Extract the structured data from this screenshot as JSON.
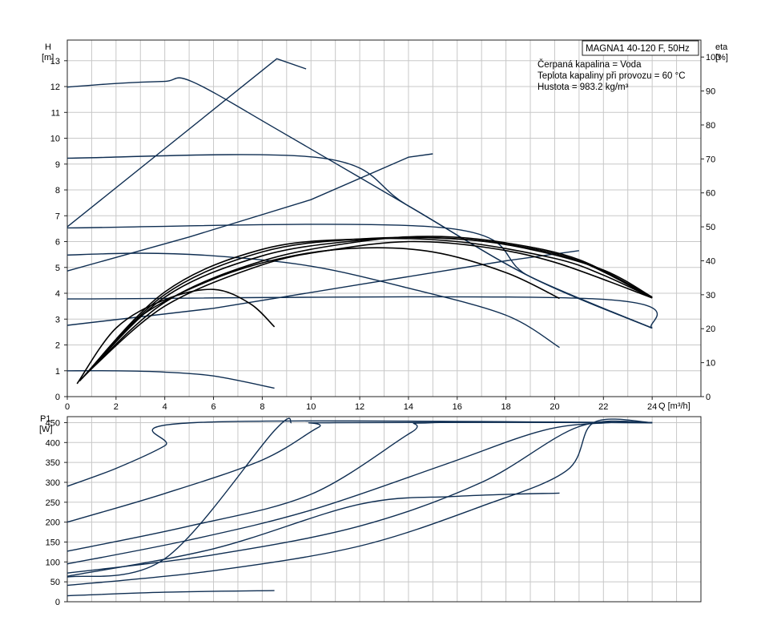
{
  "info": {
    "model": "MAGNA1 40-120 F, 50Hz",
    "lines": [
      "Čerpaná kapalina = Voda",
      "Teplota kapaliny při provozu = 60 °C",
      "Hustota = 983.2 kg/m³"
    ]
  },
  "colors": {
    "curve": "#0f2e52",
    "eff": "#000000",
    "grid": "#c8c8c8"
  },
  "chart_data": [
    {
      "type": "line",
      "name": "head-efficiency",
      "xlabel": "Q [m³/h]",
      "ylabel_top": "H",
      "ylabel_unit": "[m]",
      "y2label_top": "eta",
      "y2label_unit": "[%]",
      "xlim": [
        0,
        26
      ],
      "ylim": [
        0,
        13.8
      ],
      "y2lim": [
        0,
        105
      ],
      "xticks": [
        0,
        2,
        4,
        6,
        8,
        10,
        12,
        14,
        16,
        18,
        20,
        22,
        24
      ],
      "yticks": [
        0,
        1,
        2,
        3,
        4,
        5,
        6,
        7,
        8,
        9,
        10,
        11,
        12,
        13
      ],
      "y2ticks": [
        0,
        10,
        20,
        30,
        40,
        50,
        60,
        70,
        80,
        90,
        100
      ],
      "grid": true,
      "head_curves": [
        {
          "points": [
            [
              0,
              11.98
            ],
            [
              2,
              12.12
            ],
            [
              4,
              12.2
            ],
            [
              5.1,
              12.2
            ],
            [
              8.6,
              10.35
            ],
            [
              14,
              7.38
            ],
            [
              19,
              4.64
            ],
            [
              24,
              2.65
            ]
          ]
        },
        {
          "points": [
            [
              0,
              9.23
            ],
            [
              10.5,
              9.23
            ],
            [
              14,
              7.38
            ],
            [
              19,
              4.64
            ],
            [
              24,
              2.65
            ]
          ]
        },
        {
          "points": [
            [
              0,
              6.53
            ],
            [
              15.5,
              6.53
            ],
            [
              19,
              4.64
            ],
            [
              24,
              2.65
            ]
          ]
        },
        {
          "points": [
            [
              0,
              3.78
            ],
            [
              21.7,
              3.78
            ],
            [
              24,
              2.65
            ]
          ]
        },
        {
          "points": [
            [
              0,
              5.48
            ],
            [
              3,
              5.55
            ],
            [
              6,
              5.45
            ],
            [
              10,
              5.05
            ],
            [
              14,
              4.2
            ],
            [
              18,
              3.15
            ],
            [
              20.2,
              1.9
            ]
          ]
        },
        {
          "points": [
            [
              0,
              1.0
            ],
            [
              2,
              1.0
            ],
            [
              4,
              0.95
            ],
            [
              6,
              0.8
            ],
            [
              8.5,
              0.33
            ]
          ]
        }
      ],
      "eta_curves": [
        {
          "points": [
            [
              0,
              50
            ],
            [
              8.6,
              99.5
            ],
            [
              9.8,
              96.5
            ]
          ]
        },
        {
          "points": [
            [
              0,
              37
            ],
            [
              5,
              47
            ],
            [
              10,
              58
            ],
            [
              14,
              70.5
            ],
            [
              15,
              71.5
            ]
          ]
        },
        {
          "points": [
            [
              0,
              21
            ],
            [
              6,
              26
            ],
            [
              12,
              33
            ],
            [
              18,
              40
            ],
            [
              21,
              43
            ]
          ]
        }
      ],
      "efficiency_curves": [
        {
          "points": [
            [
              0.4,
              0.5
            ],
            [
              2,
              2.65
            ],
            [
              4,
              3.75
            ],
            [
              6,
              4.15
            ],
            [
              7.5,
              3.6
            ],
            [
              8.5,
              2.7
            ]
          ]
        },
        {
          "points": [
            [
              0.8,
              0.9
            ],
            [
              3,
              3.1
            ],
            [
              6,
              4.55
            ],
            [
              9,
              5.4
            ],
            [
              12,
              5.75
            ],
            [
              15,
              5.6
            ],
            [
              18,
              4.8
            ],
            [
              20.2,
              3.8
            ]
          ]
        },
        {
          "points": [
            [
              0.9,
              1.0
            ],
            [
              4,
              3.5
            ],
            [
              8,
              5.1
            ],
            [
              11,
              5.7
            ],
            [
              14,
              6.0
            ],
            [
              17,
              5.8
            ],
            [
              20,
              5.2
            ],
            [
              24,
              3.82
            ]
          ]
        },
        {
          "points": [
            [
              0.8,
              0.9
            ],
            [
              4,
              3.65
            ],
            [
              8,
              5.25
            ],
            [
              12,
              6.0
            ],
            [
              15,
              6.2
            ],
            [
              18,
              5.95
            ],
            [
              21,
              5.3
            ],
            [
              24,
              3.85
            ]
          ]
        },
        {
          "points": [
            [
              0.7,
              0.8
            ],
            [
              4,
              3.85
            ],
            [
              8,
              5.45
            ],
            [
              12,
              6.05
            ],
            [
              15,
              6.15
            ],
            [
              18,
              5.9
            ],
            [
              21,
              5.25
            ],
            [
              24,
              3.82
            ]
          ]
        },
        {
          "points": [
            [
              0.6,
              0.7
            ],
            [
              4,
              3.95
            ],
            [
              8,
              5.6
            ],
            [
              12,
              6.1
            ],
            [
              16,
              6.1
            ],
            [
              19,
              5.7
            ],
            [
              22,
              4.9
            ],
            [
              24,
              3.85
            ]
          ]
        },
        {
          "points": [
            [
              0.5,
              0.6
            ],
            [
              4,
              4.05
            ],
            [
              8,
              5.7
            ],
            [
              12,
              6.1
            ],
            [
              16,
              6.0
            ],
            [
              20,
              5.35
            ],
            [
              22,
              4.7
            ],
            [
              24,
              3.82
            ]
          ]
        }
      ]
    },
    {
      "type": "line",
      "name": "power",
      "ylabel_top": "P1",
      "ylabel_unit": "[W]",
      "xlim": [
        0,
        26
      ],
      "ylim": [
        0,
        465
      ],
      "yticks": [
        0,
        50,
        100,
        150,
        200,
        250,
        300,
        350,
        400,
        450
      ],
      "grid": true,
      "power_curves": [
        {
          "points": [
            [
              0,
              290
            ],
            [
              2,
              335
            ],
            [
              4,
              392
            ],
            [
              5.2,
              450
            ],
            [
              24,
              450
            ]
          ]
        },
        {
          "points": [
            [
              0,
              200
            ],
            [
              4,
              272
            ],
            [
              8,
              356
            ],
            [
              10.3,
              438
            ],
            [
              11,
              450
            ],
            [
              24,
              450
            ]
          ]
        },
        {
          "points": [
            [
              0,
              127
            ],
            [
              5,
              190
            ],
            [
              10,
              270
            ],
            [
              14.1,
              425
            ],
            [
              15,
              450
            ],
            [
              24,
              450
            ]
          ]
        },
        {
          "points": [
            [
              0,
              95
            ],
            [
              5,
              155
            ],
            [
              10,
              230
            ],
            [
              15.5,
              345
            ],
            [
              19.5,
              430
            ],
            [
              22.2,
              450
            ],
            [
              24,
              450
            ]
          ]
        },
        {
          "points": [
            [
              0,
              72
            ],
            [
              6,
              118
            ],
            [
              12,
              190
            ],
            [
              17,
              300
            ],
            [
              21,
              440
            ],
            [
              24,
              450
            ]
          ]
        },
        {
          "points": [
            [
              0,
              41
            ],
            [
              6,
              78
            ],
            [
              12,
              140
            ],
            [
              17,
              240
            ],
            [
              20.5,
              330
            ],
            [
              21.6,
              450
            ],
            [
              24,
              450
            ]
          ]
        },
        {
          "points": [
            [
              0,
              62
            ],
            [
              4,
              108
            ],
            [
              8.5,
              430
            ],
            [
              9.2,
              450
            ]
          ]
        },
        {
          "points": [
            [
              0,
              64
            ],
            [
              6,
              133
            ],
            [
              12,
              245
            ],
            [
              16,
              265
            ],
            [
              20.2,
              273
            ]
          ]
        },
        {
          "points": [
            [
              0,
              15
            ],
            [
              4,
              24
            ],
            [
              8.5,
              28
            ]
          ]
        }
      ]
    }
  ]
}
